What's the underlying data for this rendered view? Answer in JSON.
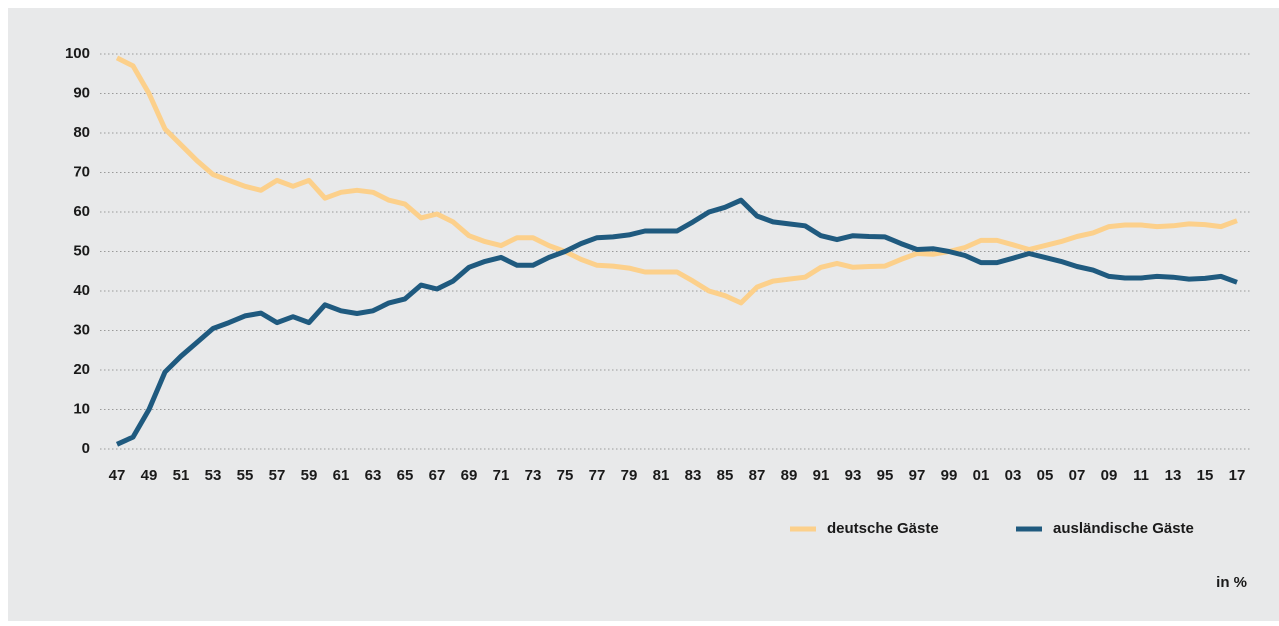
{
  "chart_data": {
    "type": "line",
    "categories": [
      "47",
      null,
      "49",
      null,
      "51",
      null,
      "53",
      null,
      "55",
      null,
      "57",
      null,
      "59",
      null,
      "61",
      null,
      "63",
      null,
      "65",
      null,
      "67",
      null,
      "69",
      null,
      "71",
      null,
      "73",
      null,
      "75",
      null,
      "77",
      null,
      "79",
      null,
      "81",
      null,
      "83",
      null,
      "85",
      null,
      "87",
      null,
      "89",
      null,
      "91",
      null,
      "93",
      null,
      "95",
      null,
      "97",
      null,
      "99",
      null,
      "01",
      null,
      "03",
      null,
      "05",
      null,
      "07",
      null,
      "09",
      null,
      "11",
      null,
      "13",
      null,
      "15",
      null,
      "17"
    ],
    "series": [
      {
        "name": "deutsche Gäste",
        "color": "#fcd08b",
        "values": [
          99,
          97,
          90,
          81,
          77,
          73,
          69.5,
          68,
          66.5,
          65.5,
          68,
          66.5,
          68,
          63.5,
          65,
          65.5,
          65,
          63,
          62,
          58.5,
          59.5,
          57.5,
          54,
          52.5,
          51.5,
          53.5,
          53.5,
          51.5,
          50,
          48,
          46.5,
          46.3,
          45.8,
          44.8,
          44.8,
          44.8,
          42.5,
          40,
          38.8,
          37,
          41,
          42.5,
          43,
          43.5,
          46,
          47,
          46,
          46.2,
          46.3,
          48,
          49.5,
          49.3,
          50,
          51,
          52.8,
          52.8,
          51.7,
          50.5,
          51.5,
          52.5,
          53.8,
          54.7,
          56.3,
          56.7,
          56.7,
          56.3,
          56.5,
          57,
          56.8,
          56.3,
          57.8
        ]
      },
      {
        "name": "ausländische Gäste",
        "color": "#1f5a7f",
        "values": [
          1.2,
          3,
          10,
          19.5,
          23.5,
          27,
          30.5,
          32,
          33.7,
          34.4,
          32,
          33.5,
          32,
          36.5,
          35,
          34.3,
          35,
          37,
          38,
          41.5,
          40.5,
          42.5,
          46,
          47.5,
          48.5,
          46.5,
          46.5,
          48.5,
          50,
          52,
          53.5,
          53.7,
          54.2,
          55.2,
          55.2,
          55.2,
          57.5,
          60,
          61.2,
          63,
          59,
          57.5,
          57,
          56.5,
          54,
          53,
          54,
          53.8,
          53.7,
          52,
          50.5,
          50.7,
          50,
          49,
          47.2,
          47.2,
          48.3,
          49.5,
          48.5,
          47.5,
          46.2,
          45.3,
          43.7,
          43.3,
          43.3,
          43.7,
          43.5,
          43,
          43.2,
          43.7,
          42.2
        ]
      }
    ],
    "ylim": [
      0,
      100
    ],
    "yticks": [
      0,
      10,
      20,
      30,
      40,
      50,
      60,
      70,
      80,
      90,
      100
    ],
    "grid": true,
    "unit_note": "in %"
  }
}
